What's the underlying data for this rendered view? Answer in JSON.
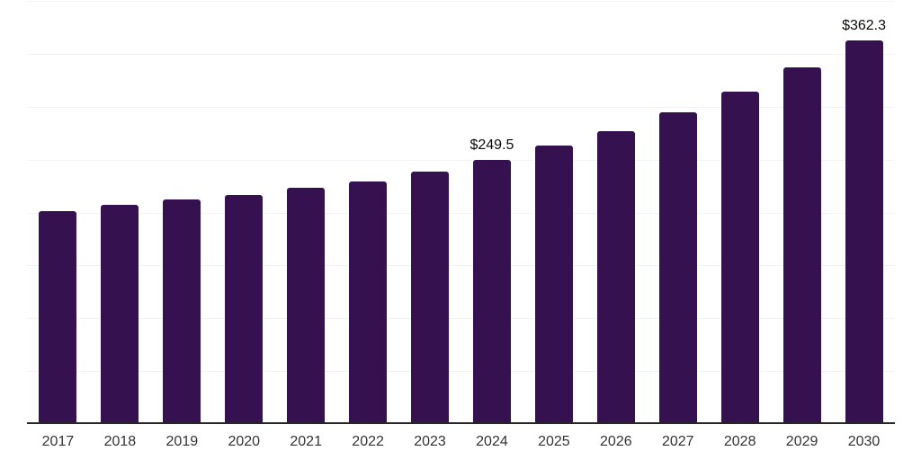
{
  "chart_data": {
    "type": "bar",
    "title": "",
    "xlabel": "",
    "ylabel": "",
    "categories": [
      "2017",
      "2018",
      "2019",
      "2020",
      "2021",
      "2022",
      "2023",
      "2024",
      "2025",
      "2026",
      "2027",
      "2028",
      "2029",
      "2030"
    ],
    "values": [
      201.0,
      207.0,
      212.1,
      216.8,
      223.6,
      229.6,
      238.9,
      249.5,
      263.0,
      276.9,
      294.4,
      314.5,
      337.4,
      362.3
    ],
    "data_labels": {
      "2024": "$249.5",
      "2030": "$362.3"
    },
    "ylim": [
      0,
      400
    ],
    "gridline_step": 50,
    "grid": true,
    "legend": "none",
    "colors": {
      "bar_fill": "#36114F",
      "gridline": "#f3f3f4",
      "axis_line": "#262626",
      "tick_label": "#333333",
      "data_label": "#0a0a0a",
      "background": "#ffffff"
    }
  }
}
